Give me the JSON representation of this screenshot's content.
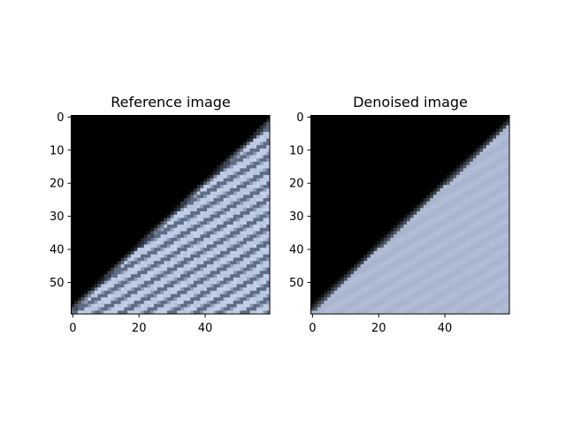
{
  "chart_data": [
    {
      "type": "heatmap",
      "title": "Reference image",
      "image_size": [
        60,
        60
      ],
      "x_ticks": [
        0,
        20,
        40
      ],
      "y_ticks": [
        0,
        10,
        20,
        30,
        40,
        50
      ],
      "xlim": [
        -0.5,
        59.5
      ],
      "ylim": [
        59.5,
        -0.5
      ],
      "content": "black upper-left triangle; sharp light-blue diagonal stripes lower-right",
      "colors": {
        "dark": "#000000",
        "stripe_light": "#c5d2ec",
        "stripe_dark": "#5f6c85"
      }
    },
    {
      "type": "heatmap",
      "title": "Denoised image",
      "image_size": [
        60,
        60
      ],
      "x_ticks": [
        0,
        20,
        40
      ],
      "y_ticks": [
        0,
        10,
        20,
        30,
        40,
        50
      ],
      "xlim": [
        -0.5,
        59.5
      ],
      "ylim": [
        59.5,
        -0.5
      ],
      "content": "black upper-left triangle; smoothed light-blue faint stripes lower-right",
      "colors": {
        "dark": "#000000",
        "stripe_light": "#b7c3dc",
        "stripe_dark": "#95a1ba"
      }
    }
  ]
}
